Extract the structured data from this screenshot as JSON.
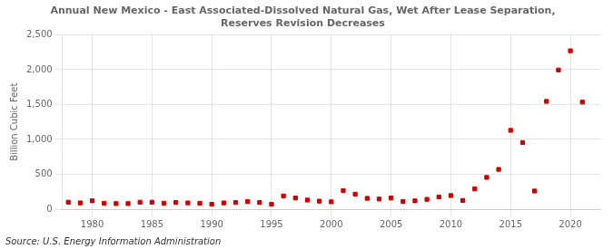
{
  "chart_data": {
    "type": "scatter",
    "title": "Annual New Mexico - East Associated-Dissolved Natural Gas, Wet After Lease Separation,\nReserves Revision Decreases",
    "ylabel": "Billion Cubic Feet",
    "annotations": [
      "Source: U.S. Energy Information Administration"
    ],
    "x": [
      1978,
      1979,
      1980,
      1981,
      1982,
      1983,
      1984,
      1985,
      1986,
      1987,
      1988,
      1989,
      1990,
      1991,
      1992,
      1993,
      1994,
      1995,
      1996,
      1997,
      1998,
      1999,
      2000,
      2001,
      2002,
      2003,
      2004,
      2005,
      2006,
      2007,
      2008,
      2009,
      2010,
      2011,
      2012,
      2013,
      2014,
      2015,
      2016,
      2017,
      2018,
      2019,
      2020,
      2021
    ],
    "values": [
      100,
      90,
      120,
      85,
      80,
      80,
      100,
      100,
      85,
      95,
      90,
      85,
      70,
      90,
      95,
      110,
      95,
      70,
      190,
      160,
      130,
      115,
      105,
      265,
      215,
      155,
      145,
      160,
      110,
      120,
      140,
      175,
      195,
      125,
      290,
      455,
      570,
      1130,
      955,
      260,
      1545,
      1995,
      2270,
      1535
    ],
    "color": "#cc0000",
    "marker": "square",
    "xlim": [
      1977.5,
      2022.5
    ],
    "xticks": [
      1980,
      1985,
      1990,
      1995,
      2000,
      2005,
      2010,
      2015,
      2020
    ],
    "ylim": [
      0,
      2500
    ],
    "yticks": [
      0,
      500,
      {
        "value": 1000,
        "label": "1,000"
      },
      {
        "value": 1500,
        "label": "1,500"
      },
      {
        "value": 2000,
        "label": "2,000"
      },
      {
        "value": 2500,
        "label": "2,500"
      }
    ],
    "grid": true
  }
}
